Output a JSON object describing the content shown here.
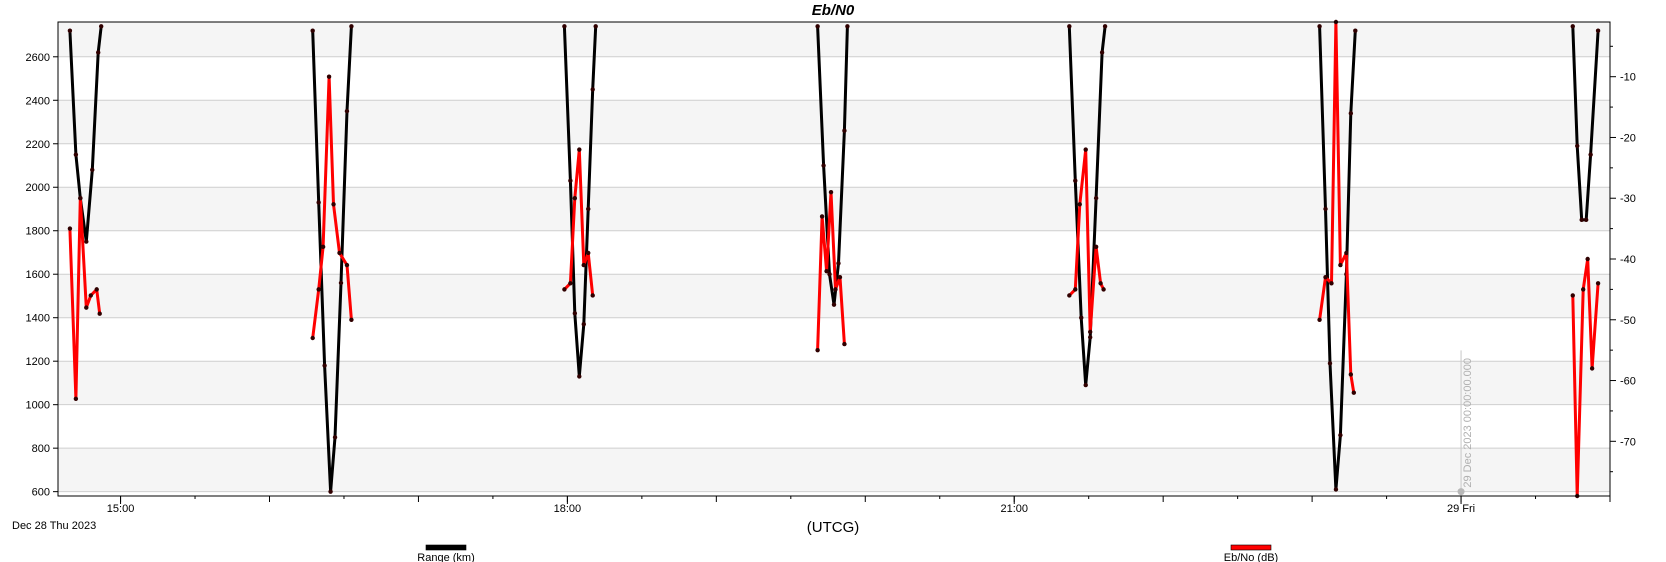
{
  "chart_data": {
    "type": "line",
    "title": "Eb/N0",
    "xlabel": "(UTCG)",
    "x_ticks": [
      {
        "t": 15.0,
        "label": "15:00"
      },
      {
        "t": 18.0,
        "label": "18:00"
      },
      {
        "t": 21.0,
        "label": "21:00"
      },
      {
        "t": 24.0,
        "label": "29 Fri"
      }
    ],
    "x_date_label": "Dec 28 Thu 2023",
    "xlim": [
      14.58,
      25.0
    ],
    "y_left": {
      "ylim": [
        580,
        2760
      ],
      "ticks": [
        600,
        800,
        1000,
        1200,
        1400,
        1600,
        1800,
        2000,
        2200,
        2400,
        2600
      ]
    },
    "y_right": {
      "ylim": [
        -79,
        -1
      ],
      "ticks": [
        -10,
        -20,
        -30,
        -40,
        -50,
        -60,
        -70
      ]
    },
    "grid": true,
    "marker": {
      "t": 24.0,
      "label": "29 Dec 2023 00:00:00.000"
    },
    "legend": {
      "placement": "bottom",
      "items": [
        "Range (km)",
        "Eb/No (dB)"
      ]
    },
    "series": [
      {
        "name": "Range (km)",
        "color": "#000000",
        "axis": "left",
        "passes": [
          [
            [
              14.66,
              2720
            ],
            [
              14.7,
              2150
            ],
            [
              14.73,
              1950
            ],
            [
              14.77,
              1750
            ],
            [
              14.81,
              2080
            ],
            [
              14.85,
              2620
            ],
            [
              14.87,
              2740
            ]
          ],
          [
            [
              16.29,
              2720
            ],
            [
              16.33,
              1930
            ],
            [
              16.37,
              1180
            ],
            [
              16.41,
              600
            ],
            [
              16.44,
              850
            ],
            [
              16.48,
              1560
            ],
            [
              16.52,
              2350
            ],
            [
              16.55,
              2740
            ]
          ],
          [
            [
              17.98,
              2740
            ],
            [
              18.02,
              2030
            ],
            [
              18.05,
              1420
            ],
            [
              18.08,
              1130
            ],
            [
              18.11,
              1370
            ],
            [
              18.14,
              1900
            ],
            [
              18.17,
              2450
            ],
            [
              18.19,
              2740
            ]
          ],
          [
            [
              19.68,
              2740
            ],
            [
              19.72,
              2100
            ],
            [
              19.76,
              1600
            ],
            [
              19.79,
              1460
            ],
            [
              19.82,
              1650
            ],
            [
              19.86,
              2260
            ],
            [
              19.88,
              2740
            ]
          ],
          [
            [
              21.37,
              2740
            ],
            [
              21.41,
              2030
            ],
            [
              21.45,
              1400
            ],
            [
              21.48,
              1090
            ],
            [
              21.51,
              1310
            ],
            [
              21.55,
              1950
            ],
            [
              21.59,
              2620
            ],
            [
              21.61,
              2740
            ]
          ],
          [
            [
              23.05,
              2740
            ],
            [
              23.09,
              1900
            ],
            [
              23.12,
              1190
            ],
            [
              23.16,
              610
            ],
            [
              23.19,
              860
            ],
            [
              23.23,
              1600
            ],
            [
              23.26,
              2340
            ],
            [
              23.29,
              2720
            ]
          ],
          [
            [
              24.75,
              2740
            ],
            [
              24.78,
              2190
            ],
            [
              24.81,
              1850
            ],
            [
              24.84,
              1850
            ],
            [
              24.87,
              2150
            ],
            [
              24.92,
              2720
            ]
          ]
        ]
      },
      {
        "name": "Eb/No (dB)",
        "color": "#ff0000",
        "axis": "right",
        "passes": [
          [
            [
              14.66,
              -35
            ],
            [
              14.7,
              -63
            ],
            [
              14.73,
              -30
            ],
            [
              14.77,
              -48
            ],
            [
              14.8,
              -46
            ],
            [
              14.84,
              -45
            ],
            [
              14.86,
              -49
            ]
          ],
          [
            [
              16.29,
              -53
            ],
            [
              16.33,
              -45
            ],
            [
              16.36,
              -38
            ],
            [
              16.4,
              -10
            ],
            [
              16.43,
              -31
            ],
            [
              16.47,
              -39
            ],
            [
              16.52,
              -41
            ],
            [
              16.55,
              -50
            ]
          ],
          [
            [
              17.98,
              -45
            ],
            [
              18.02,
              -44
            ],
            [
              18.05,
              -30
            ],
            [
              18.08,
              -22
            ],
            [
              18.11,
              -41
            ],
            [
              18.14,
              -39
            ],
            [
              18.17,
              -46
            ]
          ],
          [
            [
              19.68,
              -55
            ],
            [
              19.71,
              -33
            ],
            [
              19.74,
              -42
            ],
            [
              19.77,
              -29
            ],
            [
              19.8,
              -45
            ],
            [
              19.83,
              -43
            ],
            [
              19.86,
              -54
            ]
          ],
          [
            [
              21.37,
              -46
            ],
            [
              21.41,
              -45
            ],
            [
              21.44,
              -31
            ],
            [
              21.48,
              -22
            ],
            [
              21.51,
              -52
            ],
            [
              21.55,
              -38
            ],
            [
              21.58,
              -44
            ],
            [
              21.6,
              -45
            ]
          ],
          [
            [
              23.05,
              -50
            ],
            [
              23.09,
              -43
            ],
            [
              23.13,
              -44
            ],
            [
              23.16,
              -1
            ],
            [
              23.19,
              -41
            ],
            [
              23.23,
              -39
            ],
            [
              23.26,
              -59
            ],
            [
              23.28,
              -62
            ]
          ],
          [
            [
              24.75,
              -46
            ],
            [
              24.78,
              -79
            ],
            [
              24.82,
              -45
            ],
            [
              24.85,
              -40
            ],
            [
              24.88,
              -58
            ],
            [
              24.92,
              -44
            ]
          ]
        ]
      }
    ]
  }
}
